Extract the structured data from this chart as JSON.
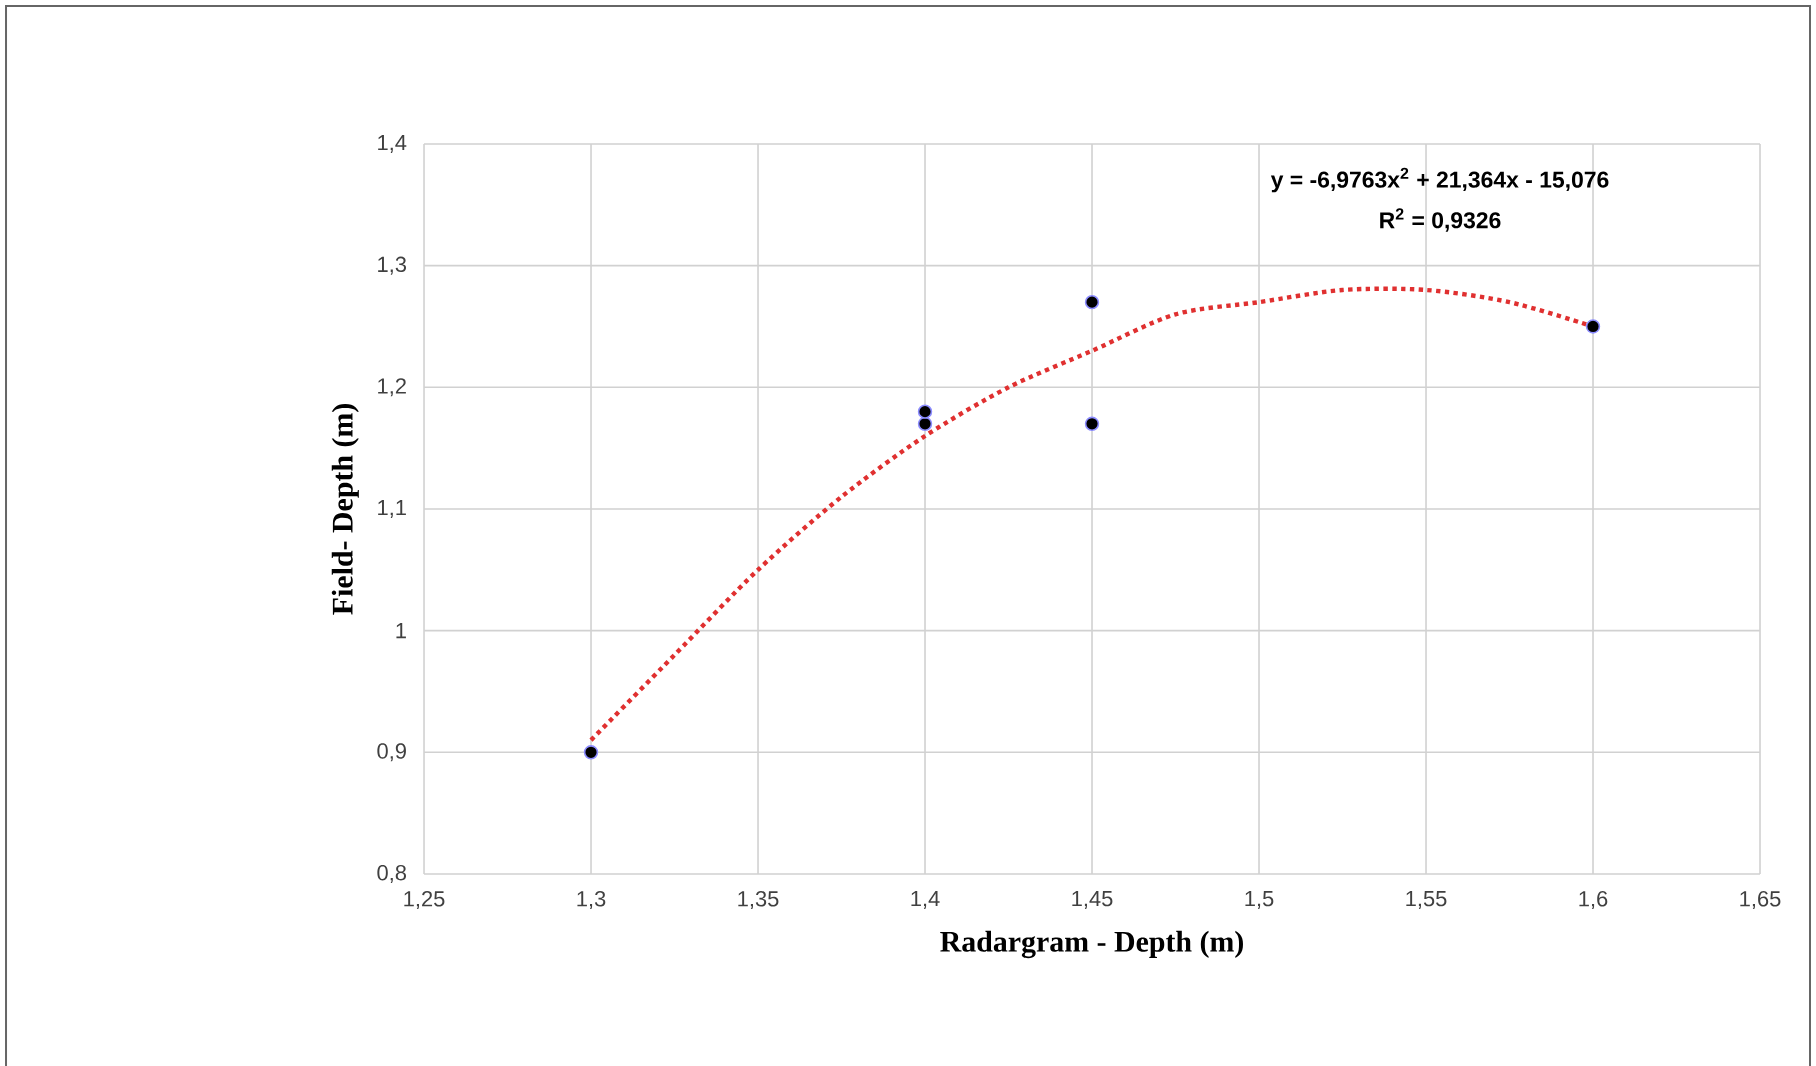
{
  "chart_data": {
    "type": "scatter",
    "xlabel": "Radargram - Depth (m)",
    "ylabel": "Field- Depth (m)",
    "xlim": [
      1.25,
      1.65
    ],
    "ylim": [
      0.8,
      1.4
    ],
    "xticks": [
      {
        "value": 1.25,
        "label": "1,25"
      },
      {
        "value": 1.3,
        "label": "1,3"
      },
      {
        "value": 1.35,
        "label": "1,35"
      },
      {
        "value": 1.4,
        "label": "1,4"
      },
      {
        "value": 1.45,
        "label": "1,45"
      },
      {
        "value": 1.5,
        "label": "1,5"
      },
      {
        "value": 1.55,
        "label": "1,55"
      },
      {
        "value": 1.6,
        "label": "1,6"
      },
      {
        "value": 1.65,
        "label": "1,65"
      }
    ],
    "yticks": [
      {
        "value": 0.8,
        "label": "0,8"
      },
      {
        "value": 0.9,
        "label": "0,9"
      },
      {
        "value": 1,
        "label": "1"
      },
      {
        "value": 1.1,
        "label": "1,1"
      },
      {
        "value": 1.2,
        "label": "1,2"
      },
      {
        "value": 1.3,
        "label": "1,3"
      },
      {
        "value": 1.4,
        "label": "1,4"
      }
    ],
    "grid": true,
    "series": [
      {
        "marker": "circle",
        "color": "#000000",
        "x": [
          1.3,
          1.4,
          1.4,
          1.45,
          1.45,
          1.6
        ],
        "values": [
          0.9,
          1.17,
          1.18,
          1.27,
          1.17,
          1.25
        ]
      },
      {
        "type": "line",
        "color": "#e03030",
        "line_style": "dotted",
        "marker": "none",
        "x": [
          1.3,
          1.325,
          1.35,
          1.375,
          1.4,
          1.425,
          1.45,
          1.475,
          1.5,
          1.525,
          1.55,
          1.575,
          1.6
        ],
        "values": [
          0.91,
          0.98,
          1.05,
          1.11,
          1.16,
          1.2,
          1.23,
          1.26,
          1.27,
          1.28,
          1.28,
          1.27,
          1.25
        ]
      }
    ],
    "annotations": [
      "y = -6,9763x$^{2}$ + 21,364x - 15,076",
      "R$^{2}$ = 0,9326"
    ]
  }
}
